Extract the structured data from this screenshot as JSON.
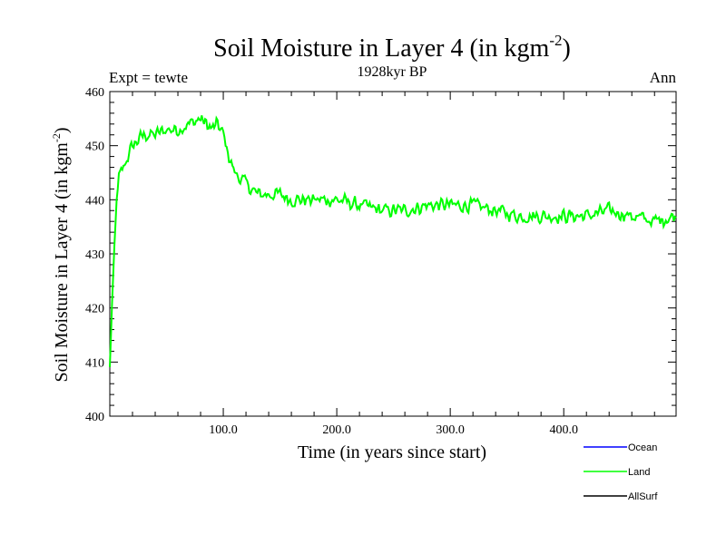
{
  "chart_data": {
    "type": "line",
    "title_main": "Soil Moisture in Layer 4 (in kgm",
    "title_sup": "-2",
    "title_close": ")",
    "left_label": "Expt = tewte",
    "center_label": "1928kyr BP",
    "right_label": "Ann",
    "xlabel": "Time (in years since start)",
    "ylabel_main": "Soil Moisture in Layer 4 (in kgm",
    "ylabel_sup": "-2",
    "ylabel_close": ")",
    "xlim": [
      0,
      499
    ],
    "ylim": [
      400,
      460
    ],
    "x_ticks": [
      100,
      200,
      300,
      400
    ],
    "x_tick_labels": [
      "100.0",
      "200.0",
      "300.0",
      "400.0"
    ],
    "y_ticks": [
      400,
      410,
      420,
      430,
      440,
      450,
      460
    ],
    "y_tick_labels": [
      "400",
      "410",
      "420",
      "430",
      "440",
      "450",
      "460"
    ],
    "legend": [
      {
        "name": "Ocean",
        "color": "#0000ff"
      },
      {
        "name": "Land",
        "color": "#00ff00"
      },
      {
        "name": "AllSurf",
        "color": "#000000"
      }
    ],
    "series": [
      {
        "name": "Land",
        "color": "#00ff00",
        "anchors": {
          "x": [
            0,
            1,
            2,
            4,
            6,
            8,
            12,
            16,
            20,
            25,
            30,
            40,
            50,
            60,
            70,
            80,
            85,
            90,
            95,
            100,
            105,
            110,
            115,
            120,
            125,
            130,
            140,
            150,
            160,
            170,
            180,
            200,
            220,
            240,
            260,
            280,
            300,
            320,
            340,
            360,
            380,
            400,
            420,
            440,
            460,
            480,
            499
          ],
          "y": [
            409,
            415,
            421,
            431,
            440,
            444,
            446,
            448,
            450,
            451,
            452,
            452,
            453,
            453,
            454,
            455,
            454,
            453,
            454,
            452,
            448,
            445,
            444,
            443,
            442,
            441,
            441,
            441,
            440,
            440,
            440,
            440,
            439,
            438,
            438,
            439,
            439,
            439,
            438,
            437,
            437,
            437,
            437,
            438,
            437,
            436,
            437
          ]
        },
        "noise_amplitude": 1.6
      }
    ]
  }
}
